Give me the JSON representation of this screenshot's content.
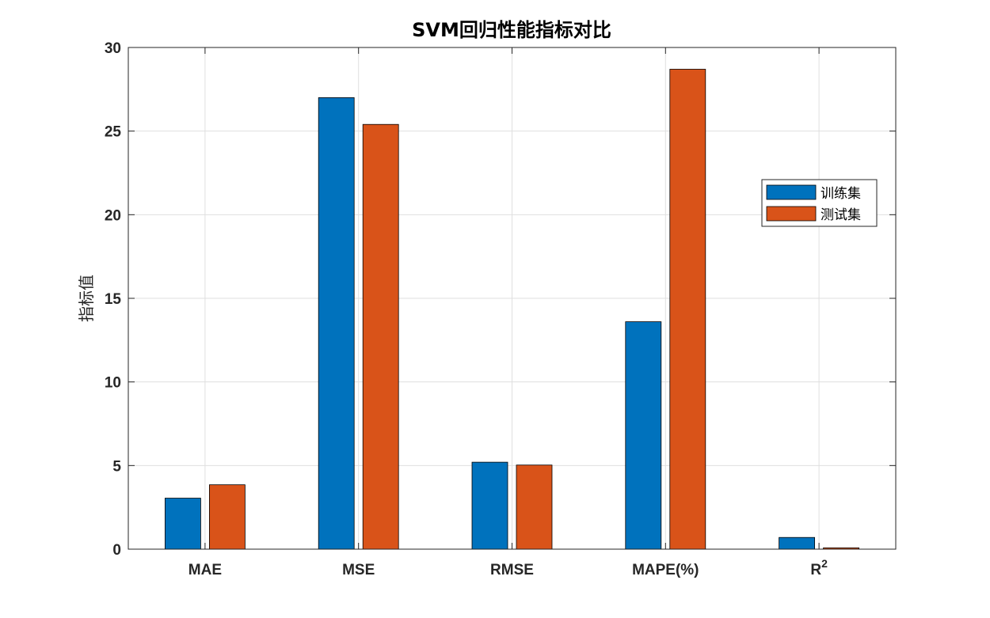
{
  "chart_data": {
    "type": "bar",
    "title": "SVM回归性能指标对比",
    "xlabel": "",
    "ylabel": "指标值",
    "categories": [
      "MAE",
      "MSE",
      "RMSE",
      "MAPE(%)",
      "R"
    ],
    "category_superscripts": [
      "",
      "",
      "",
      "",
      "2"
    ],
    "series": [
      {
        "name": "训练集",
        "color": "#0072BD",
        "values": [
          3.05,
          27.0,
          5.2,
          13.6,
          0.7
        ]
      },
      {
        "name": "测试集",
        "color": "#D95319",
        "values": [
          3.85,
          25.4,
          5.03,
          28.7,
          0.08
        ]
      }
    ],
    "ylim": [
      0,
      30
    ],
    "yticks": [
      0,
      5,
      10,
      15,
      20,
      25,
      30
    ],
    "grid": true,
    "legend_position": "right"
  }
}
